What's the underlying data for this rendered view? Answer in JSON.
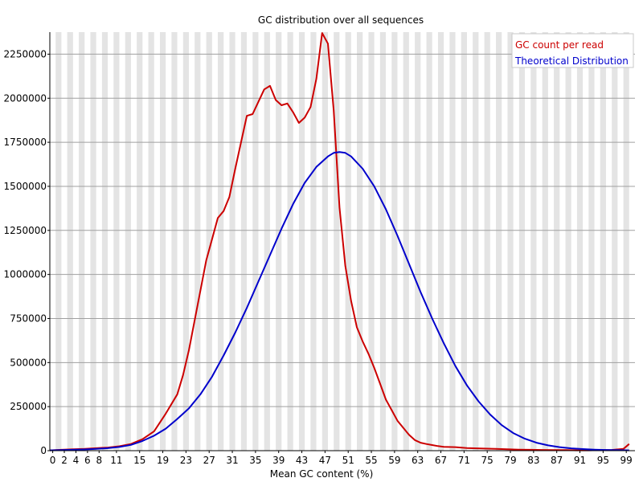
{
  "chart_data": {
    "type": "line",
    "title": "GC distribution over all sequences",
    "xlabel": "Mean GC content (%)",
    "ylabel": "",
    "xlim": [
      0,
      101
    ],
    "ylim": [
      0,
      2375000
    ],
    "yticks": [
      0,
      250000,
      500000,
      750000,
      1000000,
      1250000,
      1500000,
      1750000,
      2000000,
      2250000
    ],
    "ytick_labels": [
      "0",
      "250000",
      "500000",
      "750000",
      "1000000",
      "1250000",
      "1500000",
      "1750000",
      "2000000",
      "2250000"
    ],
    "xticks": [
      0,
      2,
      4,
      6,
      8,
      11,
      15,
      19,
      23,
      27,
      31,
      35,
      39,
      43,
      47,
      51,
      55,
      59,
      63,
      67,
      71,
      75,
      79,
      83,
      87,
      91,
      95,
      99
    ],
    "xtick_labels": [
      "0",
      "2",
      "4",
      "6",
      "8",
      "11",
      "15",
      "19",
      "23",
      "27",
      "31",
      "35",
      "39",
      "43",
      "47",
      "51",
      "55",
      "59",
      "63",
      "67",
      "71",
      "75",
      "79",
      "83",
      "87",
      "91",
      "95",
      "99"
    ],
    "grid": true,
    "legend_position": "top-right",
    "series": [
      {
        "name": "GC count per read",
        "color": "#cc0000",
        "x": [
          0,
          2,
          4,
          6,
          8,
          10,
          12,
          14,
          16,
          18,
          20,
          22,
          23,
          24,
          25,
          26,
          27,
          28,
          29,
          30,
          31,
          32,
          33,
          34,
          35,
          36,
          37,
          38,
          39,
          40,
          41,
          42,
          43,
          44,
          45,
          46,
          47,
          48,
          49,
          50,
          51,
          52,
          53,
          54,
          55,
          56,
          57,
          58,
          59,
          60,
          61,
          62,
          63,
          64,
          65,
          66,
          67,
          68,
          70,
          72,
          75,
          77,
          79,
          81,
          83,
          85,
          87,
          89,
          91,
          93,
          95,
          97,
          99,
          100
        ],
        "values": [
          2000,
          5000,
          8000,
          10000,
          14000,
          18000,
          25000,
          38000,
          65000,
          110000,
          210000,
          320000,
          430000,
          570000,
          740000,
          910000,
          1080000,
          1200000,
          1320000,
          1360000,
          1440000,
          1600000,
          1750000,
          1900000,
          1910000,
          1980000,
          2050000,
          2070000,
          1990000,
          1960000,
          1970000,
          1920000,
          1860000,
          1890000,
          1950000,
          2110000,
          2370000,
          2310000,
          1930000,
          1380000,
          1050000,
          850000,
          700000,
          620000,
          550000,
          470000,
          380000,
          290000,
          230000,
          170000,
          130000,
          90000,
          60000,
          45000,
          38000,
          32000,
          26000,
          22000,
          20000,
          15000,
          12000,
          10000,
          8000,
          6000,
          5000,
          4000,
          3000,
          3000,
          2000,
          2000,
          3000,
          4000,
          10000,
          38000
        ]
      },
      {
        "name": "Theoretical Distribution",
        "color": "#0000cc",
        "x": [
          0,
          2,
          4,
          6,
          8,
          10,
          12,
          14,
          16,
          18,
          20,
          22,
          24,
          26,
          28,
          30,
          32,
          34,
          36,
          38,
          40,
          42,
          44,
          46,
          48,
          49,
          50,
          51,
          52,
          54,
          56,
          58,
          60,
          62,
          64,
          66,
          68,
          70,
          72,
          74,
          76,
          78,
          80,
          82,
          84,
          86,
          88,
          90,
          92,
          94,
          96,
          98,
          100
        ],
        "values": [
          2000,
          3000,
          5000,
          7000,
          10000,
          14000,
          21000,
          33000,
          55000,
          85000,
          125000,
          180000,
          240000,
          320000,
          420000,
          540000,
          670000,
          810000,
          960000,
          1110000,
          1260000,
          1400000,
          1520000,
          1610000,
          1670000,
          1690000,
          1695000,
          1690000,
          1670000,
          1600000,
          1500000,
          1370000,
          1220000,
          1060000,
          900000,
          750000,
          610000,
          480000,
          370000,
          280000,
          205000,
          145000,
          100000,
          68000,
          45000,
          30000,
          20000,
          13000,
          9000,
          6000,
          4000,
          3000,
          2000
        ]
      }
    ]
  }
}
